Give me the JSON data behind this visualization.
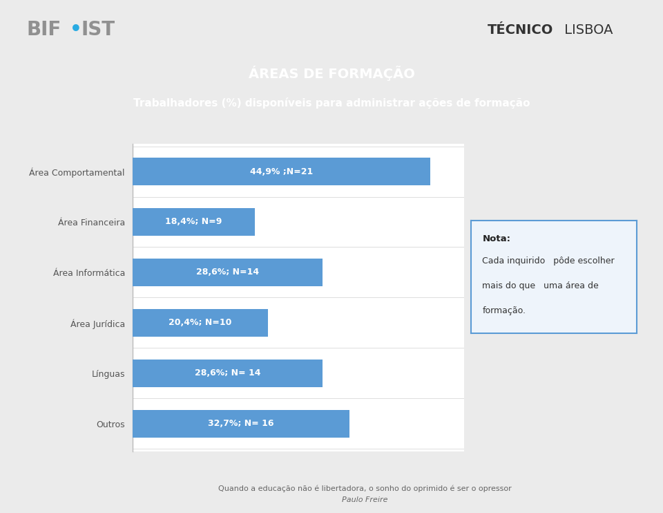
{
  "title_line1": "ÁREAS DE FORMAÇÃO",
  "title_line2": "Trabalhadores (%) disponíveis para administrar ações de formação",
  "categories": [
    "Área Comportamental",
    "Área Financeira",
    "Área Informática",
    "Área Jurídica",
    "Línguas",
    "Outros"
  ],
  "values": [
    44.9,
    18.4,
    28.6,
    20.4,
    28.6,
    32.7
  ],
  "bar_labels": [
    "44,9% ;N=21",
    "18,4%; N=9",
    "28,6%; N=14",
    "20,4%; N=10",
    "28,6%; N= 14",
    "32,7%; N= 16"
  ],
  "bar_color": "#5B9BD5",
  "title_bg_color": "#9B9B9B",
  "title_text_color": "#FFFFFF",
  "chart_bg_color": "#FFFFFF",
  "outer_bg_color": "#EBEBEB",
  "footer_line1": "Quando a educação não é libertadora, o sonho do oprimido é ser o opressor",
  "footer_line2": "Paulo Freire",
  "note_title": "Nota:",
  "note_text1": "Cada inquirido   pôde escolher",
  "note_text2": "mais do que   uma área de",
  "note_text3": "formação.",
  "note_border_color": "#5B9BD5",
  "note_bg_color": "#EEF4FB",
  "xlim_max": 50,
  "bar_height": 0.55,
  "bif_color": "#909090",
  "ist_color": "#909090",
  "dot_color": "#29ABE2",
  "tecnico_bold_color": "#333333",
  "tecnico_normal_color": "#333333"
}
